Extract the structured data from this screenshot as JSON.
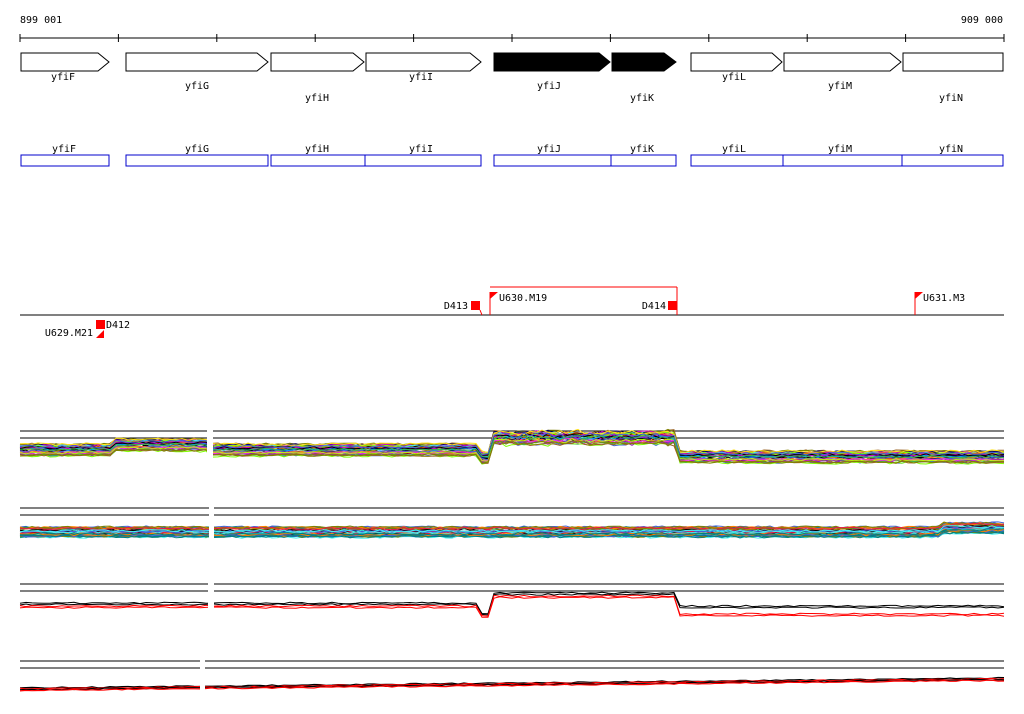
{
  "coords": {
    "start": "899 001",
    "end": "909 000"
  },
  "colors": {
    "gene_fill_highlight": "#000000",
    "gene_stroke": "#000000",
    "annotation_box": "#0000cc",
    "marker": "#ff0000",
    "axis": "#000000",
    "series_black": "#000000",
    "series_red": "#ff0000"
  },
  "genes": [
    {
      "name": "yfiF",
      "highlight": false
    },
    {
      "name": "yfiG",
      "highlight": false
    },
    {
      "name": "yfiH",
      "highlight": false
    },
    {
      "name": "yfiI",
      "highlight": false
    },
    {
      "name": "yfiJ",
      "highlight": true
    },
    {
      "name": "yfiK",
      "highlight": true
    },
    {
      "name": "yfiL",
      "highlight": false
    },
    {
      "name": "yfiM",
      "highlight": false
    },
    {
      "name": "yfiN",
      "highlight": false
    }
  ],
  "annotations": [
    "yfiF",
    "yfiG",
    "yfiH",
    "yfiI",
    "yfiJ",
    "yfiK",
    "yfiL",
    "yfiM",
    "yfiN"
  ],
  "markers": [
    {
      "label": "D412",
      "type": "block"
    },
    {
      "label": "U629.M21",
      "type": "flag"
    },
    {
      "label": "D413",
      "type": "block"
    },
    {
      "label": "U630.M19",
      "type": "flag"
    },
    {
      "label": "D414",
      "type": "block"
    },
    {
      "label": "U631.M3",
      "type": "flag"
    }
  ],
  "tracks": [
    {
      "name": "track-1",
      "style": "multicolor"
    },
    {
      "name": "track-2",
      "style": "multicolor"
    },
    {
      "name": "track-3",
      "style": "redblack"
    },
    {
      "name": "track-4",
      "style": "redblack"
    }
  ]
}
